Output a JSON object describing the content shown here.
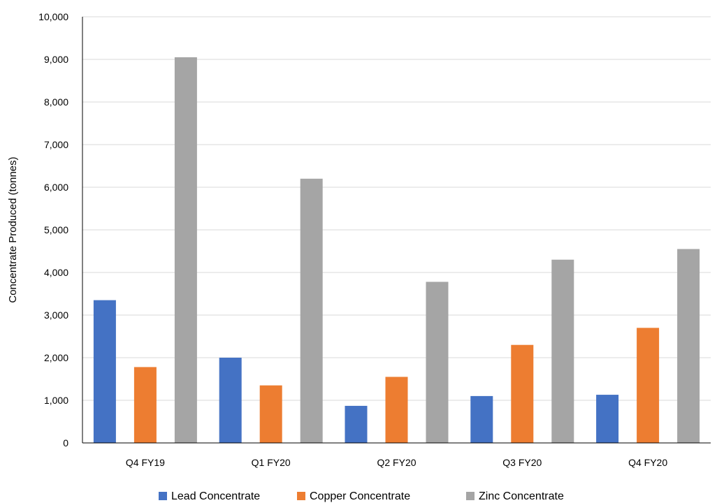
{
  "chart_data": {
    "type": "bar",
    "title": "",
    "xlabel": "",
    "ylabel": "Concentrate Produced (tonnes)",
    "ylim": [
      0,
      10000
    ],
    "yticks": [
      "0",
      "1,000",
      "2,000",
      "3,000",
      "4,000",
      "5,000",
      "6,000",
      "7,000",
      "8,000",
      "9,000",
      "10,000"
    ],
    "categories": [
      "Q4 FY19",
      "Q1 FY20",
      "Q2 FY20",
      "Q3 FY20",
      "Q4 FY20"
    ],
    "series": [
      {
        "name": "Lead Concentrate",
        "color": "#4472C4",
        "values": [
          3350,
          2000,
          870,
          1100,
          1130
        ]
      },
      {
        "name": "Copper Concentrate",
        "color": "#ED7D31",
        "values": [
          1780,
          1350,
          1550,
          2300,
          2700
        ]
      },
      {
        "name": "Zinc Concentrate",
        "color": "#A5A5A5",
        "values": [
          9050,
          6200,
          3780,
          4300,
          4550
        ]
      }
    ],
    "grid": true,
    "legend_position": "bottom"
  }
}
